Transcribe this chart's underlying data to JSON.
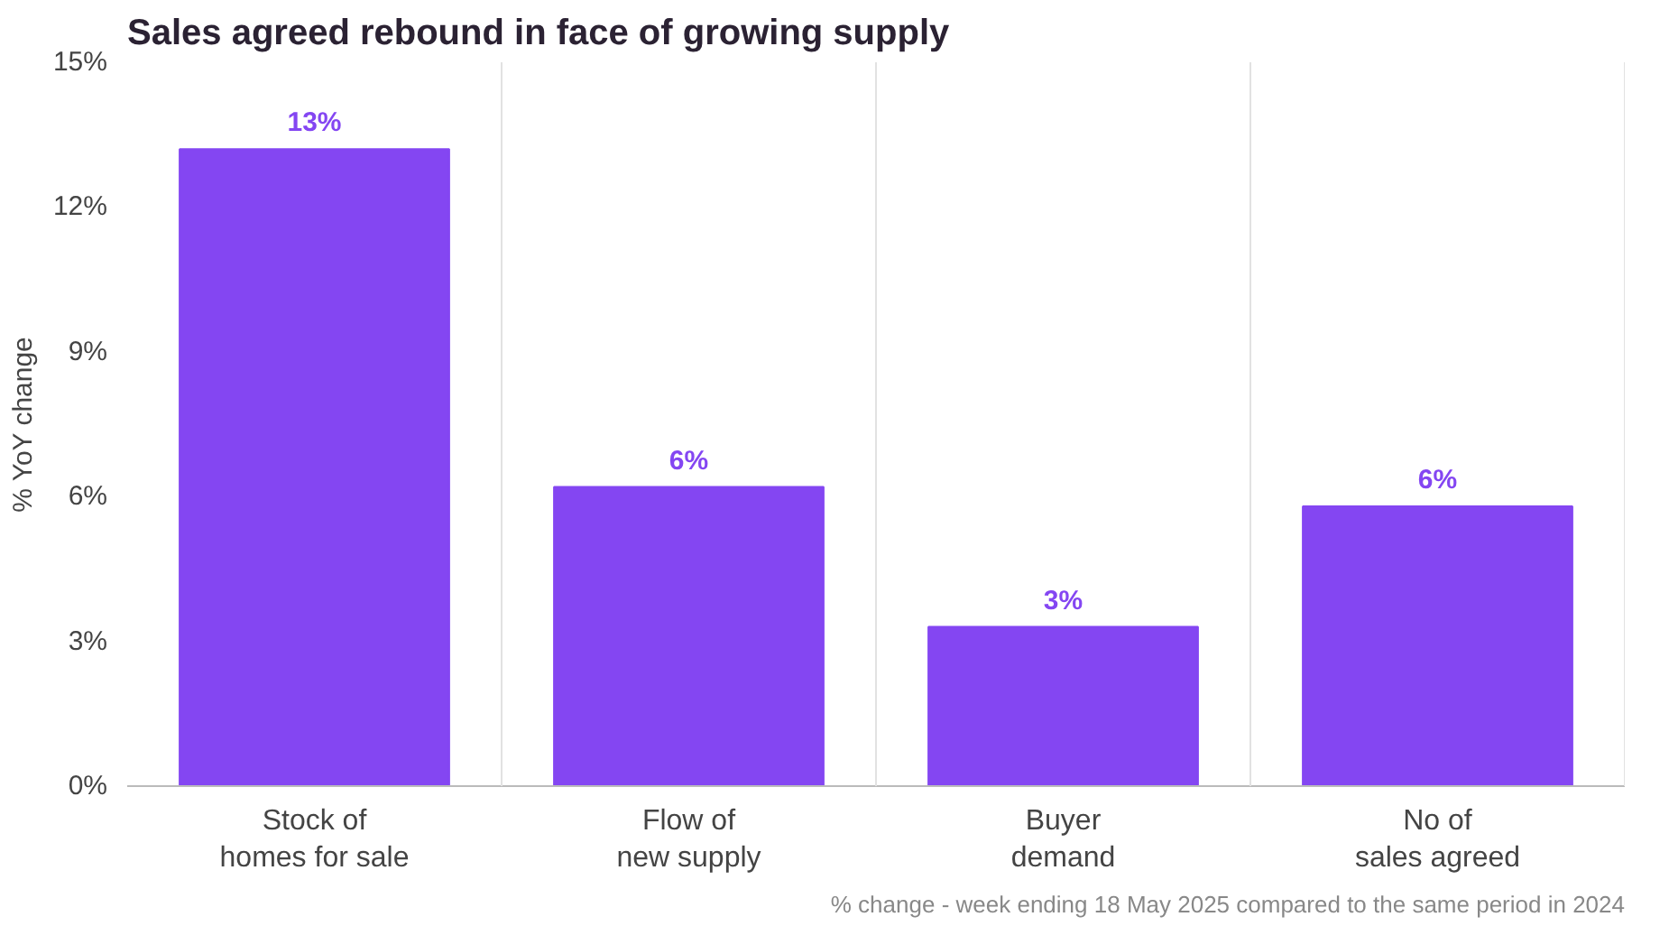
{
  "chart_data": {
    "type": "bar",
    "title": "Sales agreed rebound in face of growing supply",
    "ylabel": "% YoY change",
    "categories": [
      "Stock of\nhomes for sale",
      "Flow of\nnew supply",
      "Buyer\ndemand",
      "No of\nsales agreed"
    ],
    "values": [
      13.2,
      6.2,
      3.3,
      5.8
    ],
    "value_labels": [
      "13%",
      "6%",
      "3%",
      "6%"
    ],
    "color": "#8446f2",
    "ylim": [
      0,
      15
    ],
    "yticks": [
      {
        "value": 0,
        "label": "0%"
      },
      {
        "value": 3,
        "label": "3%"
      },
      {
        "value": 6,
        "label": "6%"
      },
      {
        "value": 9,
        "label": "9%"
      },
      {
        "value": 12,
        "label": "12%"
      },
      {
        "value": 15,
        "label": "15%"
      }
    ],
    "grid": "x",
    "annotations": [
      "% change - week ending 18 May 2025 compared to the same period in 2024"
    ]
  }
}
